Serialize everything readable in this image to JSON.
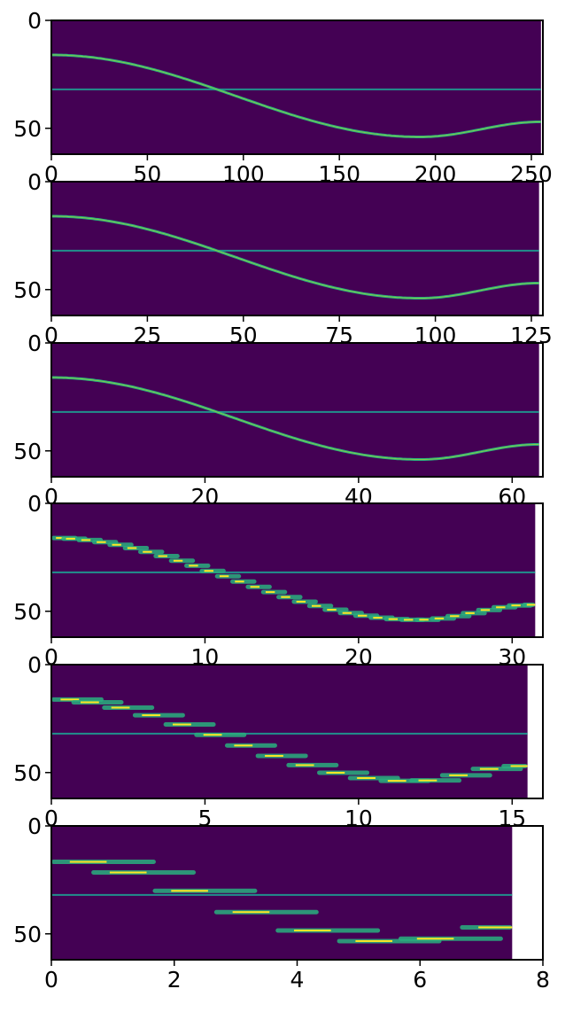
{
  "colors": {
    "background": "#440154",
    "horizontal_line": "#21908c",
    "curve_mid": "#29af7f",
    "curve_peak": "#bddf26",
    "curve_bright": "#fde725",
    "axes_frame": "#000000"
  },
  "chart_data": [
    {
      "type": "heatmap",
      "colormap": "viridis",
      "grid": false,
      "xlim": [
        0,
        256
      ],
      "ylim": [
        62,
        0
      ],
      "data_extent_x": 255,
      "xticks": [
        0,
        50,
        100,
        150,
        200,
        250
      ],
      "xtick_labels": [
        "0",
        "50",
        "100",
        "150",
        "200",
        "250"
      ],
      "yticks": [
        0,
        50
      ],
      "ytick_labels": [
        "0",
        "50"
      ],
      "horizontal_line_y": 32,
      "curve": {
        "description": "sinusoid",
        "y_at_x0": 16,
        "y_min_point_x": 192,
        "y_min_value": 54,
        "y_at_end": 47
      }
    },
    {
      "type": "heatmap",
      "colormap": "viridis",
      "grid": false,
      "xlim": [
        0,
        128
      ],
      "ylim": [
        62,
        0
      ],
      "data_extent_x": 127,
      "xticks": [
        0,
        25,
        50,
        75,
        100,
        125
      ],
      "xtick_labels": [
        "0",
        "25",
        "50",
        "75",
        "100",
        "125"
      ],
      "yticks": [
        0,
        50
      ],
      "ytick_labels": [
        "0",
        "50"
      ],
      "horizontal_line_y": 32,
      "curve": {
        "description": "sinusoid",
        "y_at_x0": 16,
        "y_min_point_x": 96,
        "y_min_value": 54,
        "y_at_end": 47
      }
    },
    {
      "type": "heatmap",
      "colormap": "viridis",
      "grid": false,
      "xlim": [
        0,
        64
      ],
      "ylim": [
        62,
        0
      ],
      "data_extent_x": 63.5,
      "xticks": [
        0,
        20,
        40,
        60
      ],
      "xtick_labels": [
        "0",
        "20",
        "40",
        "60"
      ],
      "yticks": [
        0,
        50
      ],
      "ytick_labels": [
        "0",
        "50"
      ],
      "horizontal_line_y": 32,
      "curve": {
        "description": "sinusoid",
        "y_at_x0": 16,
        "y_min_point_x": 48,
        "y_min_value": 54,
        "y_at_end": 47
      }
    },
    {
      "type": "heatmap",
      "colormap": "viridis",
      "grid": false,
      "xlim": [
        0,
        32
      ],
      "ylim": [
        62,
        0
      ],
      "data_extent_x": 31.5,
      "xticks": [
        0,
        10,
        20,
        30
      ],
      "xtick_labels": [
        "0",
        "10",
        "20",
        "30"
      ],
      "yticks": [
        0,
        50
      ],
      "ytick_labels": [
        "0",
        "50"
      ],
      "horizontal_line_y": 32,
      "curve": {
        "description": "stepped sinusoid",
        "y_at_x0": 16,
        "y_min_point_x": 24,
        "y_min_value": 54,
        "y_at_end": 47
      }
    },
    {
      "type": "heatmap",
      "colormap": "viridis",
      "grid": false,
      "xlim": [
        0,
        16
      ],
      "ylim": [
        62,
        0
      ],
      "data_extent_x": 15.5,
      "xticks": [
        0,
        5,
        10,
        15
      ],
      "xtick_labels": [
        "0",
        "5",
        "10",
        "15"
      ],
      "yticks": [
        0,
        50
      ],
      "ytick_labels": [
        "0",
        "50"
      ],
      "horizontal_line_y": 32,
      "curve": {
        "description": "stepped sinusoid",
        "y_at_x0": 16,
        "y_min_point_x": 12,
        "y_min_value": 54,
        "y_at_end": 47
      }
    },
    {
      "type": "heatmap",
      "colormap": "viridis",
      "grid": false,
      "xlim": [
        0,
        8
      ],
      "ylim": [
        62,
        0
      ],
      "data_extent_x": 7.5,
      "xticks": [
        0,
        2,
        4,
        6,
        8
      ],
      "xtick_labels": [
        "0",
        "2",
        "4",
        "6",
        "8"
      ],
      "yticks": [
        0,
        50
      ],
      "ytick_labels": [
        "0",
        "50"
      ],
      "horizontal_line_y": 32,
      "curve": {
        "description": "stepped sinusoid",
        "y_at_x0": 16,
        "y_min_point_x": 6,
        "y_min_value": 54,
        "y_at_end": 47
      }
    }
  ]
}
